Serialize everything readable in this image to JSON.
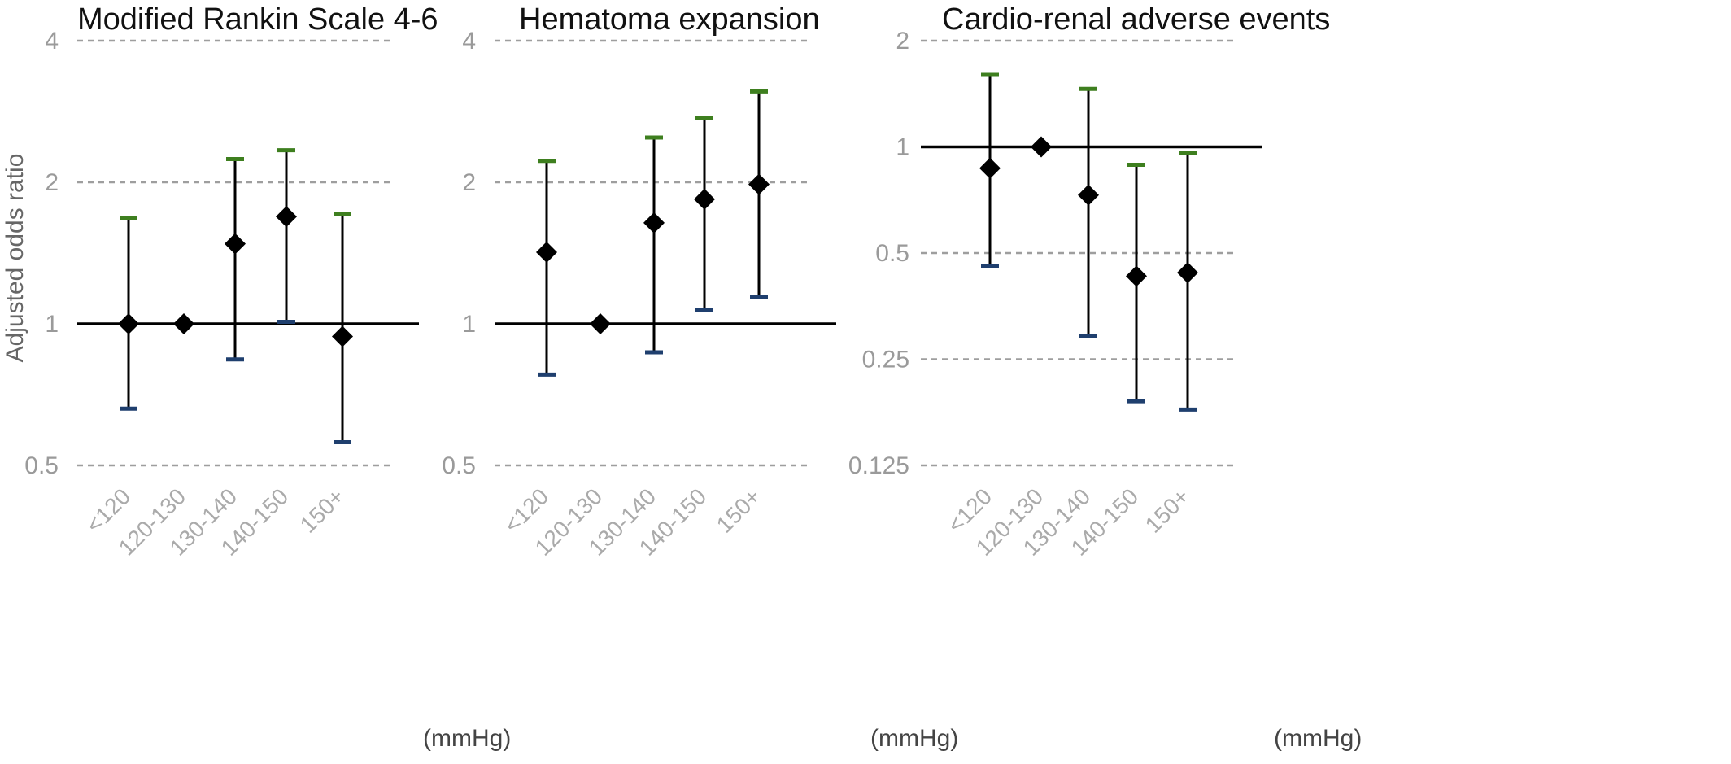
{
  "chart_data": [
    {
      "type": "scatter",
      "title": "Modified Rankin Scale 4-6",
      "ylabel": "Adjusted odds ratio",
      "xunit": "(mmHg)",
      "yscale": "log2",
      "ylim": [
        0.5,
        4
      ],
      "yticks": [
        "0.5",
        "1",
        "2",
        "4"
      ],
      "reference_line": 1,
      "categories": [
        "<120",
        "120-130",
        "130-140",
        "140-150",
        "150+"
      ],
      "values": [
        1.0,
        1.0,
        1.48,
        1.69,
        0.94
      ],
      "ci_low": [
        0.66,
        null,
        0.84,
        1.01,
        0.56
      ],
      "ci_high": [
        1.68,
        null,
        2.24,
        2.34,
        1.71
      ]
    },
    {
      "type": "scatter",
      "title": "Hematoma expansion",
      "xunit": "(mmHg)",
      "yscale": "log2",
      "ylim": [
        0.5,
        4
      ],
      "yticks": [
        "0.5",
        "1",
        "2",
        "4"
      ],
      "reference_line": 1,
      "categories": [
        "<120",
        "120-130",
        "130-140",
        "140-150",
        "150+"
      ],
      "values": [
        1.42,
        1.0,
        1.64,
        1.84,
        1.98
      ],
      "ci_low": [
        0.78,
        null,
        0.87,
        1.07,
        1.14
      ],
      "ci_high": [
        2.22,
        null,
        2.49,
        2.74,
        3.12
      ]
    },
    {
      "type": "scatter",
      "title": "Cardio-renal adverse events",
      "xunit": "(mmHg)",
      "yscale": "log2",
      "ylim": [
        0.125,
        2
      ],
      "yticks": [
        "0.125",
        "0.25",
        "0.5",
        "1",
        "2"
      ],
      "reference_line": 1,
      "categories": [
        "<120",
        "120-130",
        "130-140",
        "140-150",
        "150+"
      ],
      "values": [
        0.87,
        1.0,
        0.73,
        0.43,
        0.44
      ],
      "ci_low": [
        0.46,
        null,
        0.29,
        0.19,
        0.18
      ],
      "ci_high": [
        1.6,
        null,
        1.46,
        0.89,
        0.96
      ]
    }
  ],
  "colors": {
    "marker": "#000000",
    "ci_line": "#000000",
    "cap_high": "#3e7f1f",
    "cap_low": "#1f3f6e",
    "grid": "#9e9e9e",
    "reference": "#000000"
  }
}
